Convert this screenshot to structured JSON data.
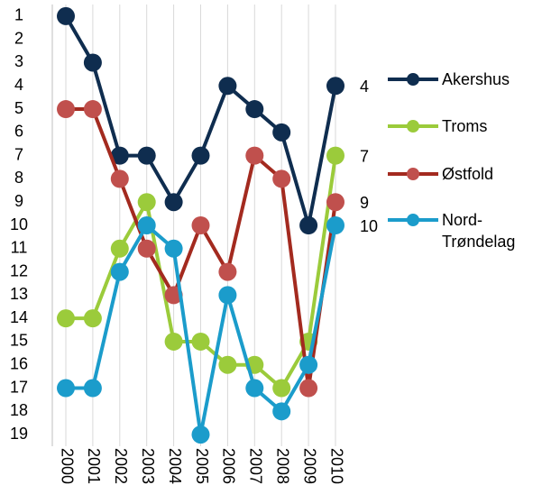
{
  "chart_data": {
    "type": "line",
    "categories": [
      "2000",
      "2001",
      "2002",
      "2003",
      "2004",
      "2005",
      "2006",
      "2007",
      "2008",
      "2009",
      "2010"
    ],
    "series": [
      {
        "name": "Akershus",
        "color": "#0f2d4f",
        "values": [
          1,
          3,
          7,
          7,
          9,
          7,
          4,
          5,
          6,
          10,
          4
        ]
      },
      {
        "name": "Troms",
        "color": "#9bcb3b",
        "values": [
          14,
          14,
          11,
          9,
          15,
          15,
          16,
          16,
          17,
          15,
          7
        ]
      },
      {
        "name": "Østfold",
        "color": "#a32a1f",
        "values": [
          5,
          5,
          8,
          11,
          13,
          10,
          12,
          7,
          8,
          17,
          9
        ]
      },
      {
        "name": "Nord-Trøndelag",
        "color": "#1b9ccb",
        "values": [
          17,
          17,
          12,
          10,
          11,
          19,
          13,
          17,
          18,
          16,
          10
        ]
      }
    ],
    "marker_colors": [
      "#0f2d4f",
      "#9bcb3b",
      "#c0504d",
      "#1b9ccb"
    ],
    "ylim": [
      0.5,
      19.5
    ],
    "y_inverted": true,
    "yticks": [
      1,
      2,
      3,
      4,
      5,
      6,
      7,
      8,
      9,
      10,
      11,
      12,
      13,
      14,
      15,
      16,
      17,
      18,
      19
    ],
    "grid": "x"
  }
}
